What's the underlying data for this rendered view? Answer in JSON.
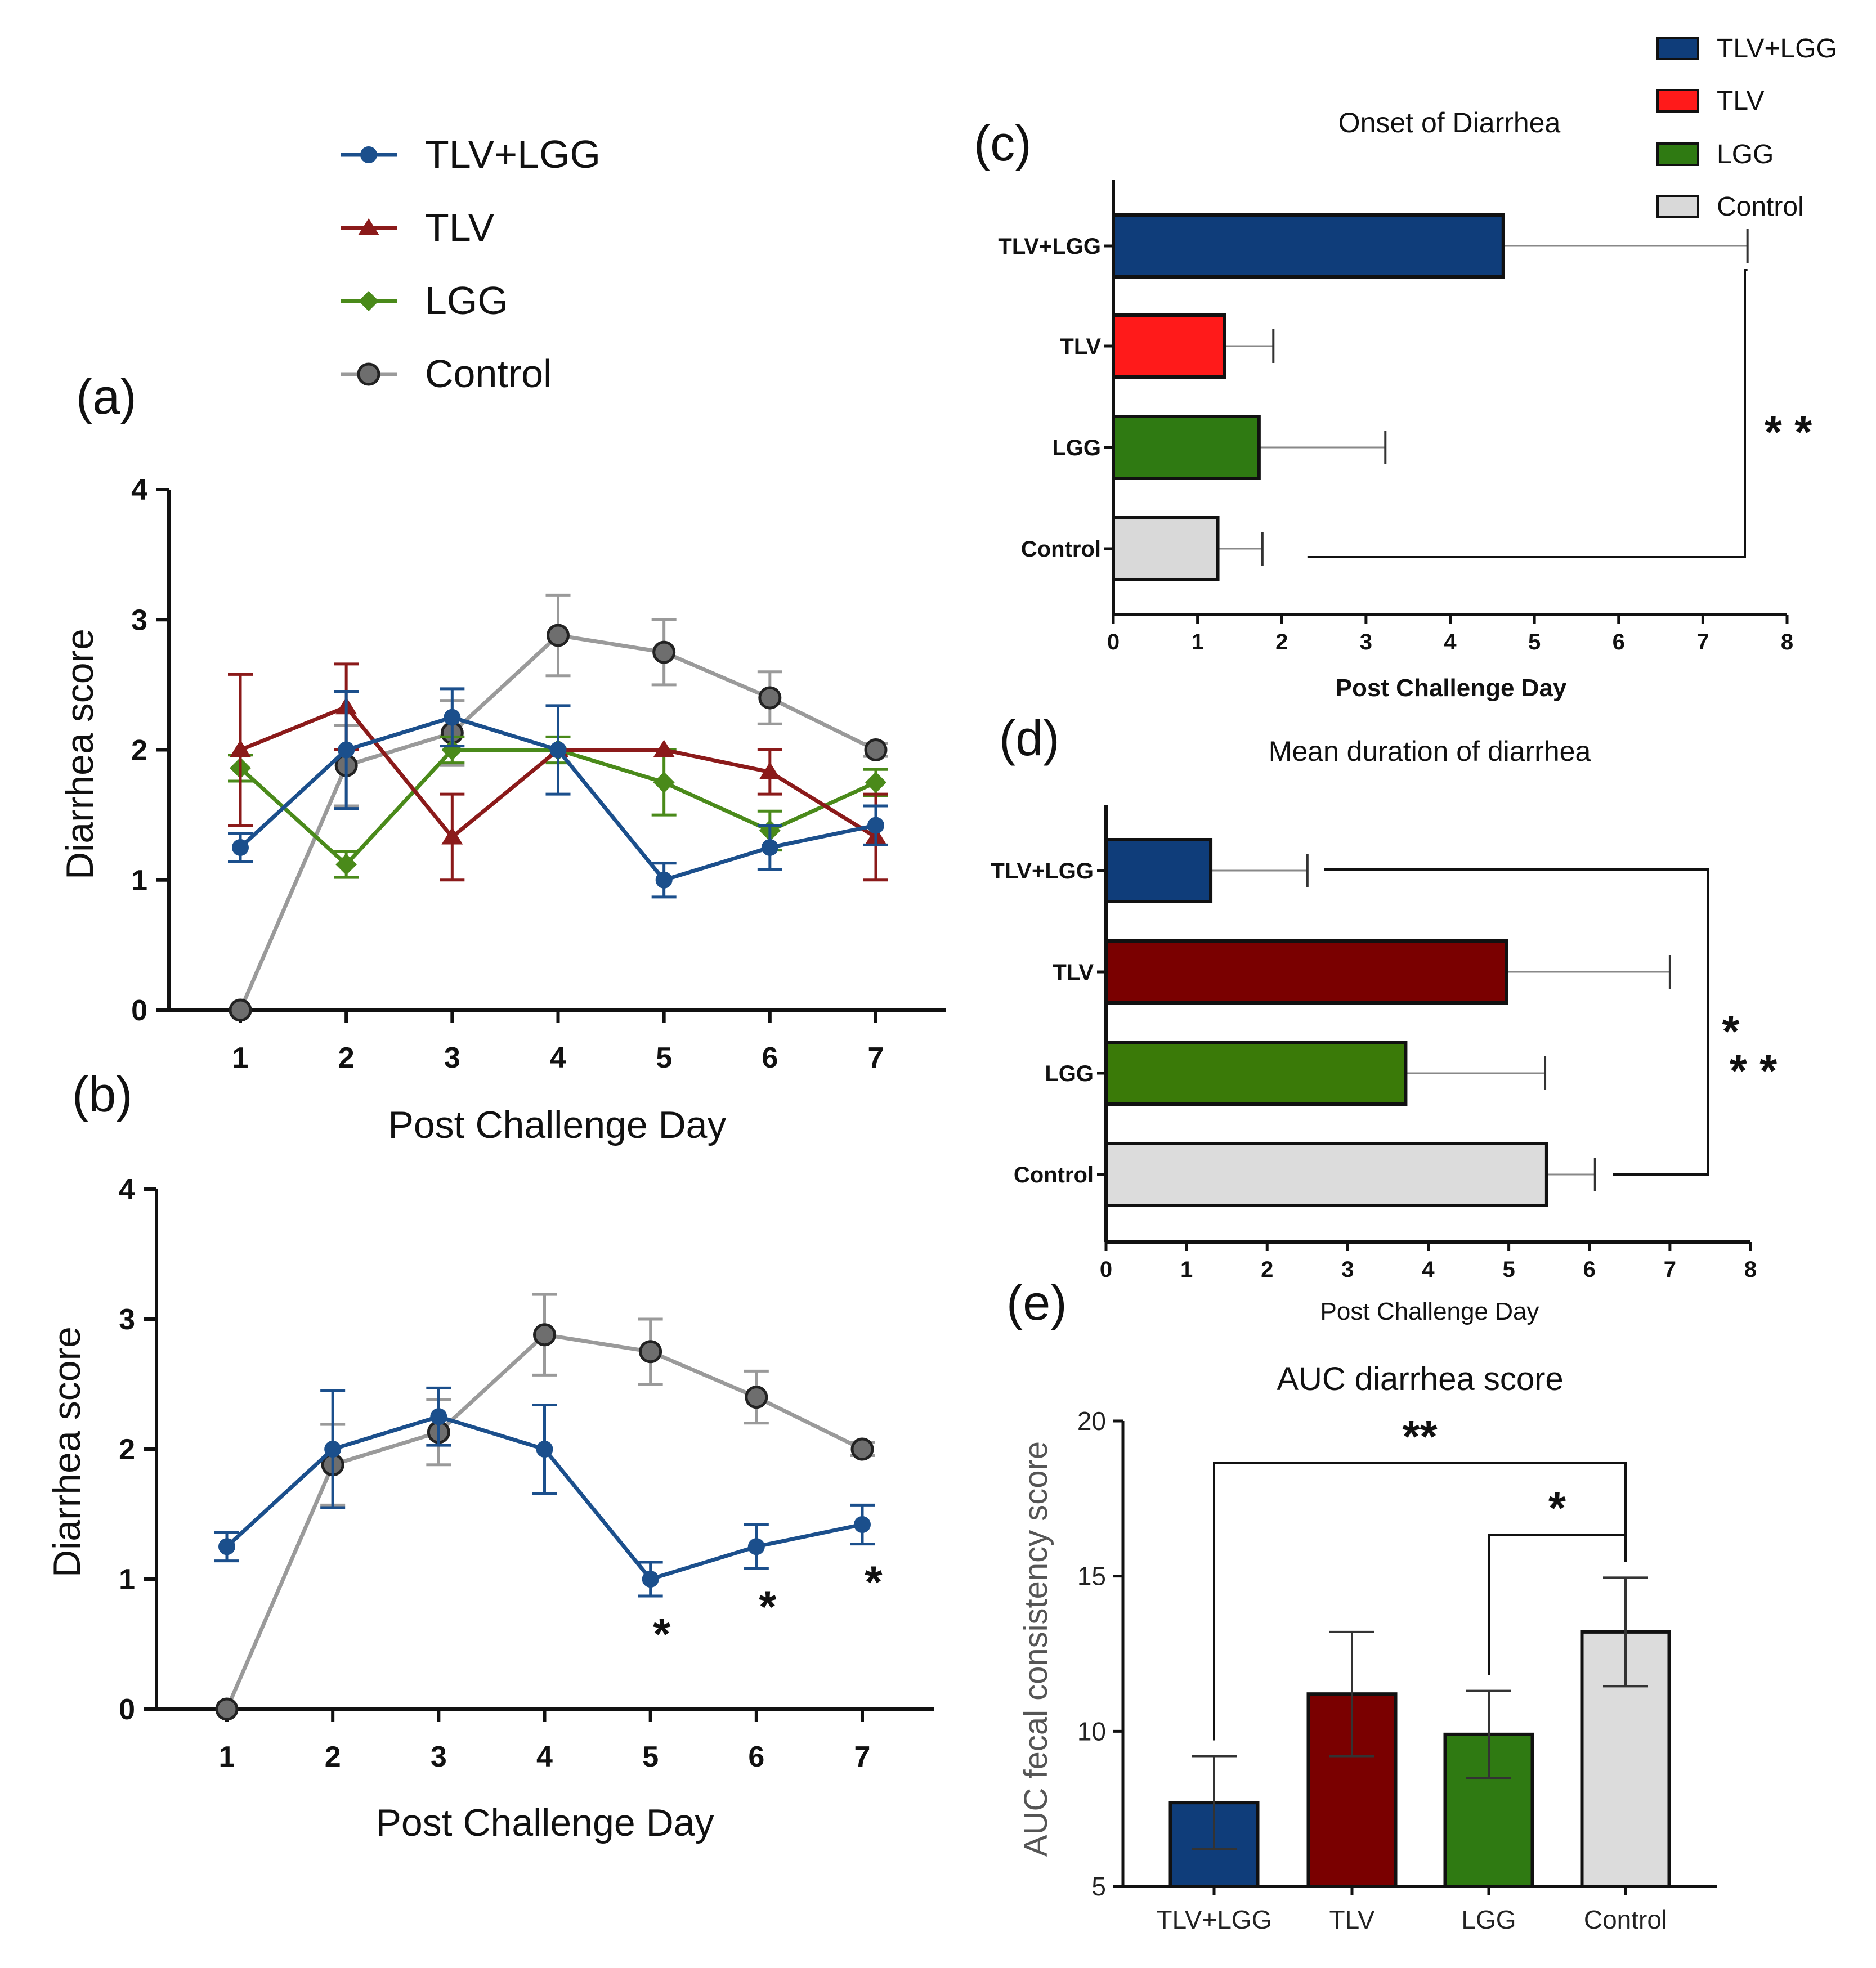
{
  "legend": {
    "line_series": [
      {
        "name": "TLV+LGG",
        "color": "#1b4f8c",
        "marker": "circle"
      },
      {
        "name": "TLV",
        "color": "#8b1a1a",
        "marker": "triangle"
      },
      {
        "name": "LGG",
        "color": "#4a8a1a",
        "marker": "diamond"
      },
      {
        "name": "Control",
        "color": "#9a9a9a",
        "marker": "circle-dark"
      }
    ],
    "bar_legend": [
      {
        "name": "TLV+LGG",
        "color": "#0f3d7a"
      },
      {
        "name": "TLV",
        "color": "#ff1a1a"
      },
      {
        "name": "LGG",
        "color": "#2f7a12"
      },
      {
        "name": "Control",
        "color": "#d9d9d9"
      }
    ]
  },
  "chart_data": [
    {
      "id": "a",
      "panel_label": "(a)",
      "type": "line",
      "x": [
        1,
        2,
        3,
        4,
        5,
        6,
        7
      ],
      "xlabel": "Post Challenge Day",
      "ylabel": "Diarrhea score",
      "ylim": [
        0,
        4
      ],
      "yticks": [
        "0",
        "1",
        "2",
        "3",
        "4"
      ],
      "xticks": [
        "1",
        "2",
        "3",
        "4",
        "5",
        "6",
        "7"
      ],
      "series": [
        {
          "name": "TLV+LGG",
          "color": "#1b4f8c",
          "marker": "circle",
          "values": [
            1.25,
            2.0,
            2.25,
            2.0,
            1.0,
            1.25,
            1.42
          ],
          "err": [
            0.11,
            0.45,
            0.22,
            0.34,
            0.13,
            0.17,
            0.15
          ]
        },
        {
          "name": "TLV",
          "color": "#8b1a1a",
          "marker": "triangle",
          "values": [
            2.0,
            2.33,
            1.33,
            2.0,
            2.0,
            1.83,
            1.33
          ],
          "err": [
            0.58,
            0.33,
            0.33,
            0,
            0,
            0.17,
            0.33
          ]
        },
        {
          "name": "LGG",
          "color": "#4a8a1a",
          "marker": "diamond",
          "values": [
            1.86,
            1.12,
            2.0,
            2.0,
            1.75,
            1.38,
            1.75
          ],
          "err": [
            0.1,
            0.1,
            0.1,
            0.1,
            0.25,
            0.15,
            0.1
          ]
        },
        {
          "name": "Control",
          "color": "#9a9a9a",
          "marker": "circle-dark",
          "values": [
            0,
            1.88,
            2.13,
            2.88,
            2.75,
            2.4,
            2.0
          ],
          "err": [
            0,
            0.31,
            0.25,
            0.31,
            0.25,
            0.2,
            0.05
          ]
        }
      ]
    },
    {
      "id": "b",
      "panel_label": "(b)",
      "type": "line",
      "x": [
        1,
        2,
        3,
        4,
        5,
        6,
        7
      ],
      "xlabel": "Post Challenge Day",
      "ylabel": "Diarrhea score",
      "ylim": [
        0,
        4
      ],
      "yticks": [
        "0",
        "1",
        "2",
        "3",
        "4"
      ],
      "xticks": [
        "1",
        "2",
        "3",
        "4",
        "5",
        "6",
        "7"
      ],
      "series": [
        {
          "name": "TLV+LGG",
          "color": "#1b4f8c",
          "marker": "circle",
          "values": [
            1.25,
            2.0,
            2.25,
            2.0,
            1.0,
            1.25,
            1.42
          ],
          "err": [
            0.11,
            0.45,
            0.22,
            0.34,
            0.13,
            0.17,
            0.15
          ]
        },
        {
          "name": "Control",
          "color": "#9a9a9a",
          "marker": "circle-dark",
          "values": [
            0,
            1.88,
            2.13,
            2.88,
            2.75,
            2.4,
            2.0
          ],
          "err": [
            0,
            0.31,
            0.25,
            0.31,
            0.25,
            0.2,
            0.05
          ]
        }
      ],
      "annotations": [
        {
          "x": 5,
          "text": "*"
        },
        {
          "x": 6,
          "text": "*"
        },
        {
          "x": 7,
          "text": "*"
        }
      ]
    },
    {
      "id": "c",
      "panel_label": "(c)",
      "type": "bar",
      "orientation": "horizontal",
      "title": "Onset of Diarrhea",
      "xlabel": "Post Challenge Day",
      "xlim": [
        0,
        8
      ],
      "xticks": [
        "0",
        "1",
        "2",
        "3",
        "4",
        "5",
        "6",
        "7",
        "8"
      ],
      "categories": [
        "TLV+LGG",
        "TLV",
        "LGG",
        "Control"
      ],
      "values": [
        4.63,
        1.32,
        1.73,
        1.24
      ],
      "err": [
        2.9,
        0.58,
        1.5,
        0.53
      ],
      "colors": [
        "#0f3d7a",
        "#ff1a1a",
        "#2f7a12",
        "#d9d9d9"
      ],
      "significance": [
        {
          "between": [
            "TLV+LGG",
            "Control"
          ],
          "text": "**"
        }
      ]
    },
    {
      "id": "d",
      "panel_label": "(d)",
      "type": "bar",
      "orientation": "horizontal",
      "title": "Mean duration of diarrhea",
      "xlabel": "Post Challenge Day",
      "xlim": [
        0,
        8
      ],
      "xticks": [
        "0",
        "1",
        "2",
        "3",
        "4",
        "5",
        "6",
        "7",
        "8"
      ],
      "categories": [
        "TLV+LGG",
        "TLV",
        "LGG",
        "Control"
      ],
      "values": [
        1.3,
        4.97,
        3.72,
        5.47
      ],
      "err": [
        1.2,
        2.03,
        1.73,
        0.6
      ],
      "colors": [
        "#0f3d7a",
        "#7a0000",
        "#3a7a08",
        "#dcdcdc"
      ],
      "significance": [
        {
          "between": [
            "TLV+LGG",
            "Control"
          ],
          "text": "*"
        },
        {
          "between": [
            "TLV+LGG",
            "Control"
          ],
          "text": "**"
        }
      ]
    },
    {
      "id": "e",
      "panel_label": "(e)",
      "type": "bar",
      "orientation": "vertical",
      "title": "AUC diarrhea score",
      "ylabel": "AUC fecal consistency score",
      "ylim": [
        5,
        20
      ],
      "yticks": [
        "5",
        "10",
        "15",
        "20"
      ],
      "categories": [
        "TLV+LGG",
        "TLV",
        "LGG",
        "Control"
      ],
      "values": [
        7.7,
        11.2,
        9.9,
        13.2
      ],
      "err": [
        1.5,
        2.0,
        1.4,
        1.75
      ],
      "colors": [
        "#0f3d7a",
        "#7a0000",
        "#2f7a12",
        "#dcdcdc"
      ],
      "significance": [
        {
          "between": [
            "TLV+LGG",
            "Control"
          ],
          "text": "**"
        },
        {
          "between": [
            "LGG",
            "Control"
          ],
          "text": "*"
        }
      ]
    }
  ]
}
